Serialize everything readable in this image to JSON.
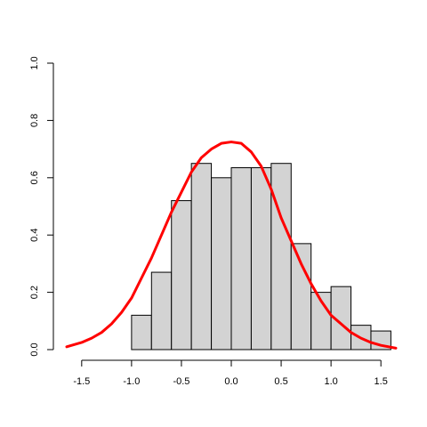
{
  "chart_data": {
    "type": "bar",
    "title": "",
    "xlabel": "",
    "ylabel": "",
    "xlim": [
      -1.65,
      1.65
    ],
    "ylim": [
      0,
      1.0
    ],
    "x_ticks": [
      -1.5,
      -1.0,
      -0.5,
      0.0,
      0.5,
      1.0,
      1.5
    ],
    "x_tick_labels": [
      "-1.5",
      "-1.0",
      "-0.5",
      "0.0",
      "0.5",
      "1.0",
      "1.5"
    ],
    "y_ticks": [
      0.0,
      0.2,
      0.4,
      0.6,
      0.8,
      1.0
    ],
    "y_tick_labels": [
      "0.0",
      "0.2",
      "0.4",
      "0.6",
      "0.8",
      "1.0"
    ],
    "bins": [
      {
        "x0": -1.0,
        "x1": -0.8,
        "value": 0.12
      },
      {
        "x0": -0.8,
        "x1": -0.6,
        "value": 0.27
      },
      {
        "x0": -0.6,
        "x1": -0.4,
        "value": 0.52
      },
      {
        "x0": -0.4,
        "x1": -0.2,
        "value": 0.65
      },
      {
        "x0": -0.2,
        "x1": 0.0,
        "value": 0.6
      },
      {
        "x0": 0.0,
        "x1": 0.2,
        "value": 0.635
      },
      {
        "x0": 0.2,
        "x1": 0.4,
        "value": 0.635
      },
      {
        "x0": 0.4,
        "x1": 0.6,
        "value": 0.65
      },
      {
        "x0": 0.6,
        "x1": 0.8,
        "value": 0.37
      },
      {
        "x0": 0.8,
        "x1": 1.0,
        "value": 0.2
      },
      {
        "x0": 1.0,
        "x1": 1.2,
        "value": 0.22
      },
      {
        "x0": 1.2,
        "x1": 1.4,
        "value": 0.085
      },
      {
        "x0": 1.4,
        "x1": 1.6,
        "value": 0.065
      }
    ],
    "curve": {
      "color": "#ff0000",
      "x": [
        -1.65,
        -1.5,
        -1.4,
        -1.3,
        -1.2,
        -1.1,
        -1.0,
        -0.9,
        -0.8,
        -0.7,
        -0.6,
        -0.5,
        -0.4,
        -0.3,
        -0.2,
        -0.1,
        0.0,
        0.1,
        0.2,
        0.3,
        0.4,
        0.5,
        0.6,
        0.7,
        0.8,
        0.9,
        1.0,
        1.1,
        1.2,
        1.3,
        1.4,
        1.5,
        1.65
      ],
      "y": [
        0.01,
        0.025,
        0.04,
        0.06,
        0.09,
        0.13,
        0.18,
        0.25,
        0.32,
        0.4,
        0.48,
        0.55,
        0.62,
        0.67,
        0.7,
        0.72,
        0.725,
        0.72,
        0.69,
        0.64,
        0.56,
        0.46,
        0.38,
        0.3,
        0.23,
        0.17,
        0.12,
        0.09,
        0.06,
        0.04,
        0.025,
        0.015,
        0.005
      ]
    },
    "bar_color": "#d3d3d3",
    "grid": false,
    "legend": "none"
  }
}
